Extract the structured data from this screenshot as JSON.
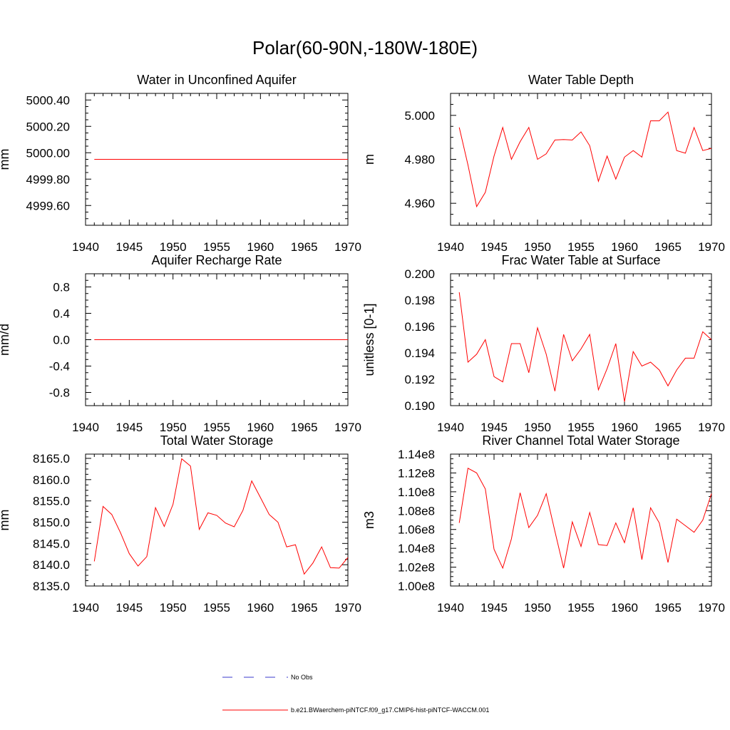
{
  "figure_title": "Polar(60-90N,-180W-180E)",
  "colors": {
    "model": "#ff0000",
    "obs": "#3b3bcc",
    "axis": "#000000"
  },
  "legend": [
    {
      "label": "No Obs",
      "style": "dashed",
      "color": "#3b3bcc"
    },
    {
      "label": "b.e21.BWaerchem-piNTCF.f09_g17.CMIP6-hist-piNTCF-WACCM.001",
      "style": "solid",
      "color": "#ff0000"
    }
  ],
  "chart_data": [
    {
      "type": "line",
      "title": "Water in Unconfined Aquifer",
      "ylabel": "mm",
      "xlim": [
        1940,
        1970
      ],
      "ylim": [
        4999.45,
        5000.45
      ],
      "xticks": [
        "1940",
        "1945",
        "1950",
        "1955",
        "1960",
        "1965",
        "1970"
      ],
      "yticks": [
        "5000.40",
        "5000.20",
        "5000.00",
        "4999.80",
        "4999.60"
      ],
      "x": [
        1941,
        1942,
        1943,
        1944,
        1945,
        1946,
        1947,
        1948,
        1949,
        1950,
        1951,
        1952,
        1953,
        1954,
        1955,
        1956,
        1957,
        1958,
        1959,
        1960,
        1961,
        1962,
        1963,
        1964,
        1965,
        1966,
        1967,
        1968,
        1969,
        1970
      ],
      "series": [
        {
          "values": [
            4999.95,
            4999.95,
            4999.95,
            4999.95,
            4999.95,
            4999.95,
            4999.95,
            4999.95,
            4999.95,
            4999.95,
            4999.95,
            4999.95,
            4999.95,
            4999.95,
            4999.95,
            4999.95,
            4999.95,
            4999.95,
            4999.95,
            4999.95,
            4999.95,
            4999.95,
            4999.95,
            4999.95,
            4999.95,
            4999.95,
            4999.95,
            4999.95,
            4999.95,
            4999.95
          ]
        }
      ]
    },
    {
      "type": "line",
      "title": "Water Table Depth",
      "ylabel": "m",
      "xlim": [
        1940,
        1970
      ],
      "ylim": [
        4.95,
        5.01
      ],
      "xticks": [
        "1940",
        "1945",
        "1950",
        "1955",
        "1960",
        "1965",
        "1970"
      ],
      "yticks": [
        "5.000",
        "4.980",
        "4.960"
      ],
      "x": [
        1941,
        1942,
        1943,
        1944,
        1945,
        1946,
        1947,
        1948,
        1949,
        1950,
        1951,
        1952,
        1953,
        1954,
        1955,
        1956,
        1957,
        1958,
        1959,
        1960,
        1961,
        1962,
        1963,
        1964,
        1965,
        1966,
        1967,
        1968,
        1969,
        1970
      ],
      "series": [
        {
          "values": [
            4.9945,
            4.9775,
            4.9585,
            4.965,
            4.9815,
            4.9945,
            4.98,
            4.988,
            4.9945,
            4.98,
            4.9825,
            4.9888,
            4.989,
            4.9888,
            4.9925,
            4.9862,
            4.97,
            4.9815,
            4.971,
            4.981,
            4.984,
            4.981,
            4.9975,
            4.9975,
            5.0015,
            4.984,
            4.9828,
            4.9945,
            4.984,
            4.985
          ]
        }
      ]
    },
    {
      "type": "line",
      "title": "Aquifer Recharge Rate",
      "ylabel": "mm/d",
      "xlim": [
        1940,
        1970
      ],
      "ylim": [
        -1.0,
        1.0
      ],
      "xticks": [
        "1940",
        "1945",
        "1950",
        "1955",
        "1960",
        "1965",
        "1970"
      ],
      "yticks": [
        "0.8",
        "0.4",
        "0.0",
        "-0.4",
        "-0.8"
      ],
      "x": [
        1941,
        1942,
        1943,
        1944,
        1945,
        1946,
        1947,
        1948,
        1949,
        1950,
        1951,
        1952,
        1953,
        1954,
        1955,
        1956,
        1957,
        1958,
        1959,
        1960,
        1961,
        1962,
        1963,
        1964,
        1965,
        1966,
        1967,
        1968,
        1969,
        1970
      ],
      "series": [
        {
          "values": [
            0,
            0,
            0,
            0,
            0,
            0,
            0,
            0,
            0,
            0,
            0,
            0,
            0,
            0,
            0,
            0,
            0,
            0,
            0,
            0,
            0,
            0,
            0,
            0,
            0,
            0,
            0,
            0,
            0,
            0
          ]
        }
      ]
    },
    {
      "type": "line",
      "title": "Frac Water Table at Surface",
      "ylabel": "unitless [0-1]",
      "xlim": [
        1940,
        1970
      ],
      "ylim": [
        0.19,
        0.2
      ],
      "xticks": [
        "1940",
        "1945",
        "1950",
        "1955",
        "1960",
        "1965",
        "1970"
      ],
      "yticks": [
        "0.200",
        "0.198",
        "0.196",
        "0.194",
        "0.192",
        "0.190"
      ],
      "x": [
        1941,
        1942,
        1943,
        1944,
        1945,
        1946,
        1947,
        1948,
        1949,
        1950,
        1951,
        1952,
        1953,
        1954,
        1955,
        1956,
        1957,
        1958,
        1959,
        1960,
        1961,
        1962,
        1963,
        1964,
        1965,
        1966,
        1967,
        1968,
        1969,
        1970
      ],
      "series": [
        {
          "values": [
            0.1986,
            0.1933,
            0.1939,
            0.195,
            0.1922,
            0.1918,
            0.1947,
            0.1947,
            0.1925,
            0.1959,
            0.1939,
            0.1911,
            0.1954,
            0.1934,
            0.1943,
            0.1954,
            0.1912,
            0.1928,
            0.1947,
            0.1903,
            0.1941,
            0.193,
            0.1933,
            0.1927,
            0.1915,
            0.1927,
            0.1936,
            0.1936,
            0.1956,
            0.195
          ]
        }
      ]
    },
    {
      "type": "line",
      "title": "Total Water Storage",
      "ylabel": "mm",
      "xlim": [
        1940,
        1970
      ],
      "ylim": [
        8135.0,
        8166.0
      ],
      "xticks": [
        "1940",
        "1945",
        "1950",
        "1955",
        "1960",
        "1965",
        "1970"
      ],
      "yticks": [
        "8165.0",
        "8160.0",
        "8155.0",
        "8150.0",
        "8145.0",
        "8140.0",
        "8135.0"
      ],
      "x": [
        1941,
        1942,
        1943,
        1944,
        1945,
        1946,
        1947,
        1948,
        1949,
        1950,
        1951,
        1952,
        1953,
        1954,
        1955,
        1956,
        1957,
        1958,
        1959,
        1960,
        1961,
        1962,
        1963,
        1964,
        1965,
        1966,
        1967,
        1968,
        1969,
        1970
      ],
      "series": [
        {
          "values": [
            8140.8,
            8153.7,
            8151.8,
            8147.5,
            8142.6,
            8139.7,
            8141.9,
            8153.4,
            8149.0,
            8154.2,
            8164.9,
            8163.2,
            8148.3,
            8152.2,
            8151.6,
            8149.8,
            8148.9,
            8152.8,
            8159.7,
            8155.8,
            8151.8,
            8150.0,
            8144.2,
            8144.7,
            8137.8,
            8140.4,
            8144.2,
            8139.3,
            8139.2,
            8141.7
          ]
        }
      ]
    },
    {
      "type": "line",
      "title": "River Channel Total Water Storage",
      "ylabel": "m3",
      "xlim": [
        1940,
        1970
      ],
      "ylim": [
        100000000.0,
        114000000.0
      ],
      "xticks": [
        "1940",
        "1945",
        "1950",
        "1955",
        "1960",
        "1965",
        "1970"
      ],
      "yticks": [
        "1.14e8",
        "1.12e8",
        "1.10e8",
        "1.08e8",
        "1.06e8",
        "1.04e8",
        "1.02e8",
        "1.00e8"
      ],
      "x": [
        1941,
        1942,
        1943,
        1944,
        1945,
        1946,
        1947,
        1948,
        1949,
        1950,
        1951,
        1952,
        1953,
        1954,
        1955,
        1956,
        1957,
        1958,
        1959,
        1960,
        1961,
        1962,
        1963,
        1964,
        1965,
        1966,
        1967,
        1968,
        1969,
        1970
      ],
      "series": [
        {
          "values": [
            106700000.0,
            112500000.0,
            112000000.0,
            110300000.0,
            103900000.0,
            101900000.0,
            105000000.0,
            109900000.0,
            106200000.0,
            107500000.0,
            109800000.0,
            105800000.0,
            101900000.0,
            106800000.0,
            104200000.0,
            107800000.0,
            104400000.0,
            104300000.0,
            106700000.0,
            104600000.0,
            108300000.0,
            102800000.0,
            108300000.0,
            106700000.0,
            102500000.0,
            107100000.0,
            106400000.0,
            105700000.0,
            107000000.0,
            109800000.0
          ]
        }
      ]
    }
  ]
}
